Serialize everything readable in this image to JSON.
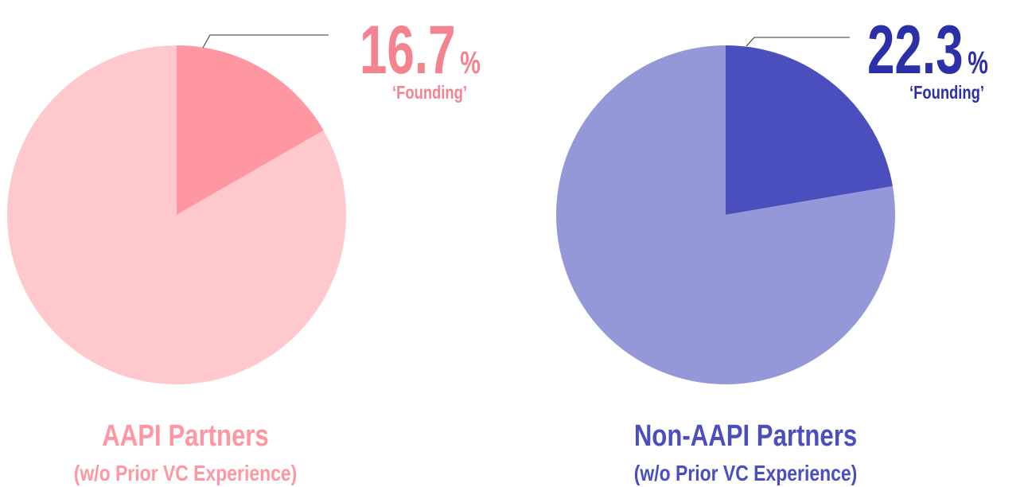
{
  "chart_data": [
    {
      "type": "pie",
      "title": "AAPI Partners",
      "subtitle": "(w/o Prior VC Experience)",
      "categories": [
        "‘Founding’",
        null
      ],
      "values": [
        16.7,
        83.3
      ],
      "value_labels": [
        "16.7%",
        null
      ],
      "colors": [
        "#ff97a3",
        "#ffc8cc"
      ],
      "label_color": "#f3838f"
    },
    {
      "type": "pie",
      "title": "Non-AAPI Partners",
      "subtitle": "(w/o Prior VC Experience)",
      "categories": [
        "‘Founding’",
        null
      ],
      "values": [
        22.3,
        77.7
      ],
      "value_labels": [
        "22.3%",
        null
      ],
      "colors": [
        "#4b4fbe",
        "#9598d8"
      ],
      "label_color": "#2b2fa8"
    }
  ]
}
